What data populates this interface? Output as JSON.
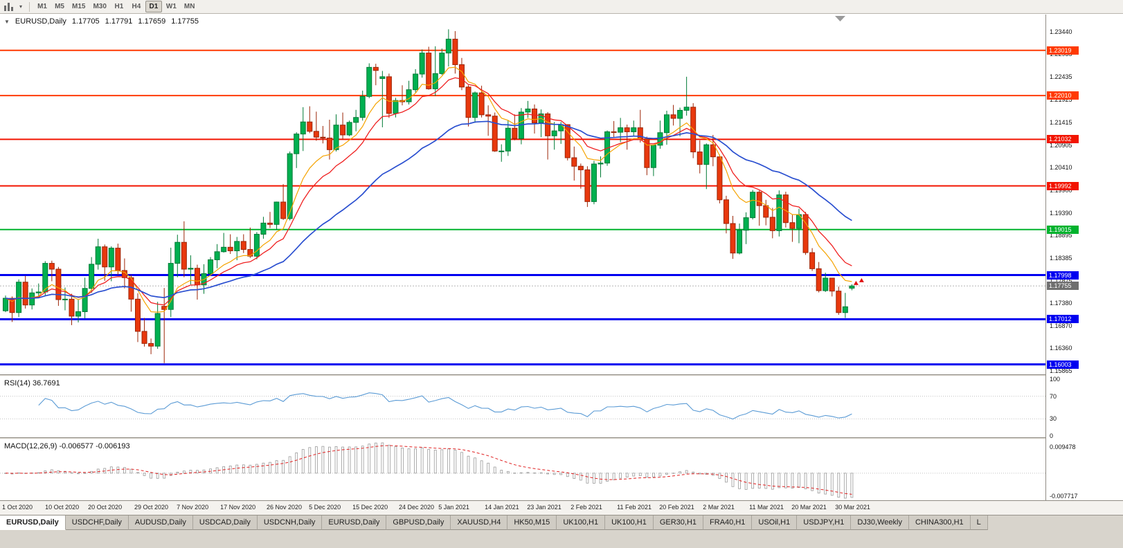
{
  "toolbar": {
    "caret": "▾",
    "timeframes": [
      "M1",
      "M5",
      "M15",
      "M30",
      "H1",
      "H4",
      "D1",
      "W1",
      "MN"
    ],
    "active_timeframe": "D1"
  },
  "chart_header": {
    "collapse_arrow": "▼",
    "symbol": "EURUSD,Daily",
    "open": "1.17705",
    "high": "1.17791",
    "low": "1.17659",
    "close": "1.17755"
  },
  "indicators": {
    "rsi_label": "RSI(14) 36.7691",
    "macd_label": "MACD(12,26,9) -0.006577 -0.006193"
  },
  "price_axis": {
    "ticks": [
      "1.23440",
      "1.22935",
      "1.22435",
      "1.21925",
      "1.21415",
      "1.20905",
      "1.20410",
      "1.19900",
      "1.19390",
      "1.18895",
      "1.18385",
      "1.17875",
      "1.17380",
      "1.16870",
      "1.16360",
      "1.15865"
    ],
    "current_price": {
      "value": "1.17755",
      "bg": "#6f6f6f",
      "fg": "#ffffff"
    },
    "rsi_ticks": [
      "100",
      "70",
      "30",
      "0"
    ],
    "macd_ticks": {
      "top": "0.009478",
      "bottom": "-0.007717"
    }
  },
  "time_axis": [
    {
      "label": "1 Oct 2020",
      "i": 0
    },
    {
      "label": "10 Oct 2020",
      "i": 6.5
    },
    {
      "label": "20 Oct 2020",
      "i": 13
    },
    {
      "label": "29 Oct 2020",
      "i": 20
    },
    {
      "label": "7 Nov 2020",
      "i": 26.4
    },
    {
      "label": "17 Nov 2020",
      "i": 33
    },
    {
      "label": "26 Nov 2020",
      "i": 40
    },
    {
      "label": "5 Dec 2020",
      "i": 46.4
    },
    {
      "label": "15 Dec 2020",
      "i": 53
    },
    {
      "label": "24 Dec 2020",
      "i": 60
    },
    {
      "label": "5 Jan 2021",
      "i": 66
    },
    {
      "label": "14 Jan 2021",
      "i": 73
    },
    {
      "label": "23 Jan 2021",
      "i": 79.4
    },
    {
      "label": "2 Feb 2021",
      "i": 86
    },
    {
      "label": "11 Feb 2021",
      "i": 93
    },
    {
      "label": "20 Feb 2021",
      "i": 99.4
    },
    {
      "label": "2 Mar 2021",
      "i": 106
    },
    {
      "label": "11 Mar 2021",
      "i": 113
    },
    {
      "label": "20 Mar 2021",
      "i": 119.4
    },
    {
      "label": "30 Mar 2021",
      "i": 126
    }
  ],
  "tabs": {
    "active": 0,
    "items": [
      "EURUSD,Daily",
      "USDCHF,Daily",
      "AUDUSD,Daily",
      "USDCAD,Daily",
      "USDCNH,Daily",
      "EURUSD,Daily",
      "GBPUSD,Daily",
      "XAUUSD,H4",
      "HK50,M15",
      "UK100,H1",
      "UK100,H1",
      "GER30,H1",
      "FRA40,H1",
      "USOil,H1",
      "USDJPY,H1",
      "DJ30,Weekly",
      "CHINA300,H1",
      "L"
    ]
  },
  "chart_data": {
    "type": "candlestick",
    "symbol": "EURUSD",
    "period": "Daily",
    "ylim": [
      1.1578,
      1.2382
    ],
    "columns": [
      "open",
      "high",
      "low",
      "close"
    ],
    "candles": [
      [
        1.172,
        1.1754,
        1.1717,
        1.1748
      ],
      [
        1.1748,
        1.1752,
        1.1695,
        1.1716
      ],
      [
        1.1716,
        1.179,
        1.1706,
        1.1784
      ],
      [
        1.1784,
        1.1798,
        1.1725,
        1.1733
      ],
      [
        1.1733,
        1.177,
        1.1723,
        1.176
      ],
      [
        1.176,
        1.1781,
        1.1749,
        1.1762
      ],
      [
        1.1762,
        1.1831,
        1.1754,
        1.1826
      ],
      [
        1.1826,
        1.1832,
        1.1786,
        1.1813
      ],
      [
        1.1813,
        1.1818,
        1.1731,
        1.1745
      ],
      [
        1.1745,
        1.1772,
        1.1721,
        1.1746
      ],
      [
        1.1746,
        1.1758,
        1.1688,
        1.1708
      ],
      [
        1.1708,
        1.1746,
        1.1694,
        1.1718
      ],
      [
        1.1718,
        1.1794,
        1.1703,
        1.177
      ],
      [
        1.177,
        1.184,
        1.176,
        1.1824
      ],
      [
        1.1824,
        1.1881,
        1.1812,
        1.1863
      ],
      [
        1.1863,
        1.1868,
        1.1787,
        1.1818
      ],
      [
        1.1818,
        1.1864,
        1.1786,
        1.186
      ],
      [
        1.186,
        1.187,
        1.18,
        1.181
      ],
      [
        1.181,
        1.1837,
        1.177,
        1.1794
      ],
      [
        1.1794,
        1.18,
        1.1718,
        1.1746
      ],
      [
        1.1746,
        1.1759,
        1.165,
        1.1674
      ],
      [
        1.1674,
        1.1704,
        1.164,
        1.1647
      ],
      [
        1.1647,
        1.1658,
        1.1623,
        1.1641
      ],
      [
        1.1641,
        1.174,
        1.1635,
        1.1714
      ],
      [
        1.173,
        1.1771,
        1.1603,
        1.1723
      ],
      [
        1.1723,
        1.1861,
        1.1706,
        1.1826
      ],
      [
        1.1826,
        1.189,
        1.1795,
        1.1873
      ],
      [
        1.1873,
        1.192,
        1.1795,
        1.1813
      ],
      [
        1.1813,
        1.1844,
        1.1779,
        1.1815
      ],
      [
        1.1815,
        1.1823,
        1.1745,
        1.1778
      ],
      [
        1.1778,
        1.1824,
        1.1758,
        1.1803
      ],
      [
        1.1803,
        1.184,
        1.1799,
        1.1834
      ],
      [
        1.1834,
        1.1869,
        1.1815,
        1.1852
      ],
      [
        1.1852,
        1.1894,
        1.185,
        1.1862
      ],
      [
        1.1862,
        1.1891,
        1.1847,
        1.1854
      ],
      [
        1.1854,
        1.1885,
        1.1833,
        1.1875
      ],
      [
        1.1875,
        1.1891,
        1.1849,
        1.1857
      ],
      [
        1.1857,
        1.1906,
        1.1838,
        1.1842
      ],
      [
        1.1842,
        1.1896,
        1.1835,
        1.1891
      ],
      [
        1.1891,
        1.193,
        1.1881,
        1.1916
      ],
      [
        1.1916,
        1.1941,
        1.1905,
        1.1913
      ],
      [
        1.1913,
        1.1964,
        1.1901,
        1.1963
      ],
      [
        1.1963,
        1.2003,
        1.1923,
        1.1926
      ],
      [
        1.1926,
        1.2076,
        1.1922,
        1.2071
      ],
      [
        1.2071,
        1.2119,
        1.2039,
        1.2115
      ],
      [
        1.2115,
        1.2175,
        1.2077,
        1.2142
      ],
      [
        1.2142,
        1.2177,
        1.2117,
        1.2121
      ],
      [
        1.2121,
        1.2165,
        1.21,
        1.2108
      ],
      [
        1.2108,
        1.2133,
        1.2094,
        1.2106
      ],
      [
        1.2106,
        1.2147,
        1.2058,
        1.208
      ],
      [
        1.208,
        1.2159,
        1.2076,
        1.2135
      ],
      [
        1.2135,
        1.2163,
        1.2103,
        1.2113
      ],
      [
        1.2113,
        1.2145,
        1.211,
        1.2141
      ],
      [
        1.2141,
        1.2169,
        1.2121,
        1.2152
      ],
      [
        1.2152,
        1.2212,
        1.2145,
        1.2199
      ],
      [
        1.2199,
        1.2273,
        1.2195,
        1.2264
      ],
      [
        1.2264,
        1.2272,
        1.2224,
        1.2257
      ],
      [
        1.2239,
        1.2256,
        1.213,
        1.2243
      ],
      [
        1.2243,
        1.225,
        1.2151,
        1.2161
      ],
      [
        1.2161,
        1.2196,
        1.2152,
        1.219
      ],
      [
        1.219,
        1.2224,
        1.2179,
        1.2187
      ],
      [
        1.2187,
        1.2234,
        1.2181,
        1.2214
      ],
      [
        1.2214,
        1.226,
        1.2208,
        1.2249
      ],
      [
        1.2249,
        1.2304,
        1.2241,
        1.2296
      ],
      [
        1.2296,
        1.231,
        1.2214,
        1.2216
      ],
      [
        1.2216,
        1.2311,
        1.22,
        1.225
      ],
      [
        1.225,
        1.2306,
        1.2247,
        1.2296
      ],
      [
        1.2296,
        1.2349,
        1.2266,
        1.2327
      ],
      [
        1.2327,
        1.2345,
        1.225,
        1.227
      ],
      [
        1.227,
        1.2285,
        1.2213,
        1.222
      ],
      [
        1.222,
        1.2224,
        1.2132,
        1.2152
      ],
      [
        1.2152,
        1.221,
        1.214,
        1.2207
      ],
      [
        1.2207,
        1.2223,
        1.2152,
        1.2158
      ],
      [
        1.2158,
        1.2179,
        1.2111,
        1.2155
      ],
      [
        1.2155,
        1.2163,
        1.2075,
        1.2077
      ],
      [
        1.2077,
        1.2092,
        1.2053,
        1.2077
      ],
      [
        1.2077,
        1.2145,
        1.2066,
        1.2128
      ],
      [
        1.2128,
        1.2159,
        1.2101,
        1.2105
      ],
      [
        1.2105,
        1.2173,
        1.2092,
        1.2164
      ],
      [
        1.2164,
        1.2189,
        1.2151,
        1.2171
      ],
      [
        1.2171,
        1.2181,
        1.2116,
        1.214
      ],
      [
        1.214,
        1.217,
        1.2108,
        1.216
      ],
      [
        1.216,
        1.2164,
        1.2058,
        1.2111
      ],
      [
        1.2111,
        1.2142,
        1.208,
        1.2122
      ],
      [
        1.2122,
        1.2142,
        1.2093,
        1.2136
      ],
      [
        1.2136,
        1.2136,
        1.2056,
        1.2062
      ],
      [
        1.2062,
        1.2087,
        1.2011,
        1.2043
      ],
      [
        1.2043,
        1.2049,
        1.1993,
        1.2035
      ],
      [
        1.2035,
        1.2043,
        1.1952,
        1.1964
      ],
      [
        1.1964,
        1.2055,
        1.1958,
        1.2048
      ],
      [
        1.2048,
        1.2065,
        1.2018,
        1.205
      ],
      [
        1.205,
        1.2123,
        1.2044,
        1.212
      ],
      [
        1.212,
        1.2144,
        1.2106,
        1.2119
      ],
      [
        1.2119,
        1.2151,
        1.2097,
        1.2129
      ],
      [
        1.2129,
        1.2136,
        1.208,
        1.212
      ],
      [
        1.212,
        1.2145,
        1.211,
        1.2129
      ],
      [
        1.2129,
        1.2169,
        1.2096,
        1.2104
      ],
      [
        1.2104,
        1.2109,
        1.2023,
        1.204
      ],
      [
        1.204,
        1.209,
        1.2021,
        1.209
      ],
      [
        1.209,
        1.2145,
        1.2082,
        1.2118
      ],
      [
        1.2118,
        1.2167,
        1.2091,
        1.2158
      ],
      [
        1.2158,
        1.218,
        1.2134,
        1.215
      ],
      [
        1.215,
        1.2174,
        1.211,
        1.2168
      ],
      [
        1.2168,
        1.2243,
        1.2156,
        1.2175
      ],
      [
        1.2175,
        1.2184,
        1.2061,
        1.2075
      ],
      [
        1.2075,
        1.2101,
        1.2027,
        1.2047
      ],
      [
        1.2047,
        1.2094,
        1.1992,
        1.2091
      ],
      [
        1.2091,
        1.2113,
        1.2043,
        1.2064
      ],
      [
        1.2064,
        1.2069,
        1.196,
        1.1968
      ],
      [
        1.1968,
        1.1977,
        1.1893,
        1.1915
      ],
      [
        1.1915,
        1.1932,
        1.1836,
        1.1849
      ],
      [
        1.1849,
        1.1915,
        1.1846,
        1.19
      ],
      [
        1.19,
        1.194,
        1.1869,
        1.1928
      ],
      [
        1.1928,
        1.199,
        1.1924,
        1.1985
      ],
      [
        1.1985,
        1.1989,
        1.191,
        1.1955
      ],
      [
        1.1955,
        1.1968,
        1.1911,
        1.1929
      ],
      [
        1.1929,
        1.195,
        1.1882,
        1.1899
      ],
      [
        1.1899,
        1.1989,
        1.1886,
        1.1979
      ],
      [
        1.1979,
        1.1986,
        1.1906,
        1.1917
      ],
      [
        1.1917,
        1.1936,
        1.1874,
        1.1904
      ],
      [
        1.1904,
        1.1948,
        1.1871,
        1.1935
      ],
      [
        1.1935,
        1.1941,
        1.1845,
        1.185
      ],
      [
        1.185,
        1.186,
        1.1809,
        1.1814
      ],
      [
        1.1814,
        1.1829,
        1.1761,
        1.1765
      ],
      [
        1.1765,
        1.1805,
        1.1762,
        1.1793
      ],
      [
        1.1793,
        1.1793,
        1.1752,
        1.1764
      ],
      [
        1.1764,
        1.1774,
        1.1711,
        1.1716
      ],
      [
        1.1716,
        1.176,
        1.1704,
        1.1729
      ],
      [
        1.17705,
        1.17791,
        1.17659,
        1.17755
      ]
    ],
    "horizontal_lines": [
      {
        "price": 1.23019,
        "label": "1.23019",
        "color": "#ff3a02",
        "width": 2
      },
      {
        "price": 1.2201,
        "label": "1.22010",
        "color": "#ff3a02",
        "width": 2
      },
      {
        "price": 1.21032,
        "label": "1.21032",
        "color": "#f21400",
        "width": 2
      },
      {
        "price": 1.19992,
        "label": "1.19992",
        "color": "#f21400",
        "width": 2
      },
      {
        "price": 1.19015,
        "label": "1.19015",
        "color": "#00b22d",
        "width": 2
      },
      {
        "price": 1.17998,
        "label": "1.17998",
        "color": "#0000f0",
        "width": 3
      },
      {
        "price": 1.17012,
        "label": "1.17012",
        "color": "#0000f0",
        "width": 3
      },
      {
        "price": 1.16003,
        "label": "1.16003",
        "color": "#0000f0",
        "width": 3
      }
    ],
    "current_price": 1.17755,
    "moving_averages": [
      {
        "type": "ema",
        "period": 8,
        "color": "#f5a300",
        "width": 1.2
      },
      {
        "type": "ema",
        "period": 13,
        "color": "#ef2020",
        "width": 1.3
      },
      {
        "type": "ema",
        "period": 34,
        "color": "#2a4fd0",
        "width": 1.7
      }
    ],
    "candle_colors": {
      "up_fill": "#00b050",
      "up_stroke": "#007a35",
      "down_fill": "#e8380d",
      "down_stroke": "#9c2507"
    },
    "rsi": {
      "period": 14,
      "value": 36.7691,
      "ylim": [
        0,
        100
      ],
      "levels": [
        70,
        30
      ],
      "color": "#5b9bd5"
    },
    "macd": {
      "fast": 12,
      "slow": 26,
      "signal_period": 9,
      "value": -0.006577,
      "signal_value": -0.006193,
      "hist_color": "#9a9a9a",
      "signal_color": "#e02020"
    },
    "markers": [
      {
        "i": 128,
        "price": 1.1787
      }
    ],
    "marker_color": "#e01010"
  }
}
